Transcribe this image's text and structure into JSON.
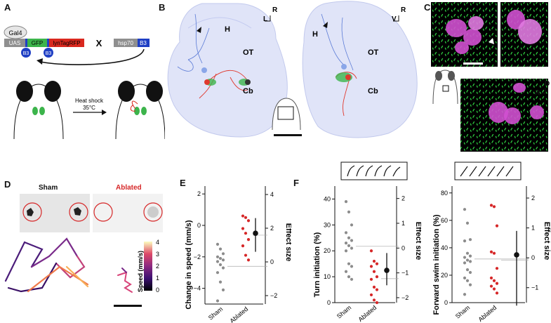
{
  "panels": {
    "A": {
      "letter": "A",
      "gal4": "Gal4",
      "uas": "UAS",
      "gfp": "GFP",
      "lyn": "lynTagRFP",
      "b3": "B3",
      "cross": "X",
      "hsp70": "hsp70",
      "heat_shock": "Heat shock",
      "temp": "35°C"
    },
    "B": {
      "letter": "B",
      "left": {
        "h": "H",
        "ot": "OT",
        "cb": "Cb",
        "axis_l": "L",
        "axis_r": "R"
      },
      "right": {
        "h": "H",
        "ot": "OT",
        "cb": "Cb",
        "axis_v": "V",
        "axis_r": "R"
      }
    },
    "C": {
      "letter": "C",
      "axis_d": "D",
      "axis_r": "R"
    },
    "D": {
      "letter": "D",
      "sham": "Sham",
      "ablated": "Ablated",
      "colorbar_label": "Speed (mm/s)",
      "colorbar_ticks": [
        "0",
        "1",
        "2",
        "3",
        "4"
      ]
    },
    "E": {
      "letter": "E",
      "ylabel": "Change in speed (mm/s)",
      "right_label": "Effect size",
      "yticks": [
        "2",
        "0",
        "−2",
        "−4"
      ],
      "right_ticks": [
        "4",
        "2",
        "0",
        "−2"
      ],
      "xticks": [
        "Sham",
        "Ablated"
      ]
    },
    "F": {
      "letter": "F",
      "left": {
        "ylabel": "Turn initiation (%)",
        "right_label": "Effect size",
        "yticks": [
          "40",
          "30",
          "20",
          "10",
          "0"
        ],
        "right_ticks": [
          "2",
          "1",
          "0",
          "−1",
          "−2"
        ],
        "xticks": [
          "Sham",
          "Ablated"
        ]
      },
      "right": {
        "ylabel": "Forward swim initiation (%)",
        "right_label": "Effect size",
        "yticks": [
          "80",
          "60",
          "40",
          "20",
          "0"
        ],
        "right_ticks": [
          "2",
          "1",
          "0",
          "−1"
        ],
        "xticks": [
          "Sham",
          "Ablated"
        ]
      }
    }
  },
  "colors": {
    "sham": "#8c8c8c",
    "ablated": "#d62728",
    "gfp": "#3cb44b",
    "rfp": "#d9281e",
    "b3": "#1f3fc4",
    "brain": "#dbe0f7",
    "magenta": "#d050d0"
  },
  "chart_data": [
    {
      "panel": "E",
      "type": "scatter",
      "ylabel": "Change in speed (mm/s)",
      "categories": [
        "Sham",
        "Ablated"
      ],
      "ylim": [
        -5,
        2.5
      ],
      "series": [
        {
          "name": "Sham",
          "values": [
            -1.2,
            -1.5,
            -1.8,
            -2.0,
            -2.1,
            -2.2,
            -2.3,
            -2.5,
            -2.7,
            -3.0,
            -3.6,
            -4.1,
            -4.8
          ]
        },
        {
          "name": "Ablated",
          "values": [
            0.6,
            0.5,
            0.3,
            -0.2,
            -0.5,
            -0.9,
            -1.3,
            -1.9,
            -2.2
          ]
        }
      ],
      "effect": {
        "mean_diff": 1.7,
        "ci": [
          0.6,
          2.6
        ],
        "ylim": [
          -2.5,
          4.5
        ]
      }
    },
    {
      "panel": "F-turn",
      "type": "scatter",
      "ylabel": "Turn initiation (%)",
      "categories": [
        "Sham",
        "Ablated"
      ],
      "ylim": [
        0,
        45
      ],
      "series": [
        {
          "name": "Sham",
          "values": [
            39,
            35,
            30,
            27,
            25,
            24,
            23,
            22,
            21,
            20,
            15,
            14,
            12,
            10,
            9
          ]
        },
        {
          "name": "Ablated",
          "values": [
            20,
            16,
            15,
            14,
            12,
            10,
            9,
            6,
            5,
            3,
            1,
            0
          ]
        }
      ],
      "effect": {
        "mean_diff": -0.9,
        "ci": [
          -1.5,
          -0.2
        ],
        "ylim": [
          -2.2,
          2.5
        ]
      }
    },
    {
      "panel": "F-forward",
      "type": "scatter",
      "ylabel": "Forward swim initiation (%)",
      "categories": [
        "Sham",
        "Ablated"
      ],
      "ylim": [
        0,
        85
      ],
      "series": [
        {
          "name": "Sham",
          "values": [
            68,
            58,
            46,
            45,
            36,
            34,
            33,
            31,
            30,
            29,
            24,
            22,
            18,
            16,
            13,
            6
          ]
        },
        {
          "name": "Ablated",
          "values": [
            71,
            70,
            56,
            37,
            36,
            25,
            18,
            16,
            14,
            12,
            10,
            7
          ]
        }
      ],
      "effect": {
        "mean_diff": 0.1,
        "ci": [
          -1.6,
          0.9
        ],
        "ylim": [
          -1.5,
          2.4
        ]
      }
    }
  ]
}
